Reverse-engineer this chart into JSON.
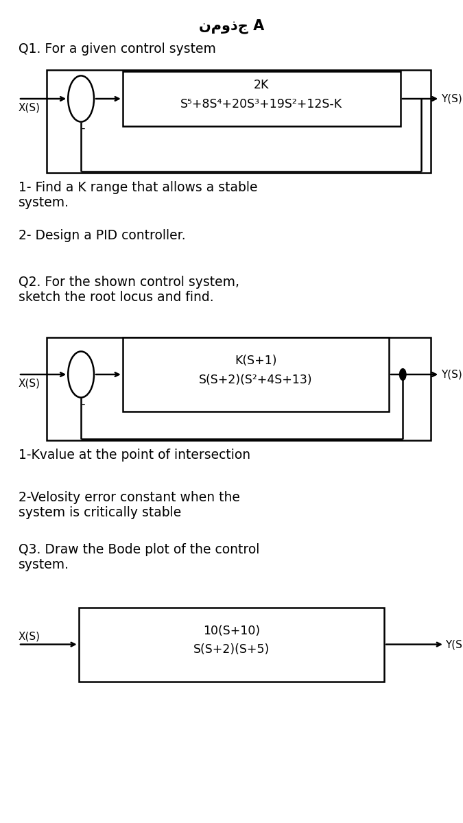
{
  "bg_color": "#ffffff",
  "title": "نموذج A",
  "title_fontsize": 15,
  "body_fontsize": 13.5,
  "q1_label": "Q1. For a given control system",
  "q1_tf_num": "2K",
  "q1_tf_den": "S⁵+8S⁴+20S³+19S²+12S-K",
  "q1_xs": "X(S)",
  "q1_ys": "Y(S)",
  "q1_item1": "1- Find a K range that allows a stable\nsystem.",
  "q1_item2": "2- Design a PID controller.",
  "q2_label": "Q2. For the shown control system,\nsketch the root locus and find.",
  "q2_tf_num": "K(S+1)",
  "q2_tf_den": "S(S+2)(S²+4S+13)",
  "q2_xs": "X(S)",
  "q2_ys": "Y(S)",
  "q2_item1": "1-Kvalue at the point of intersection",
  "q2_item2": "2-Velosity error constant when the\nsystem is critically stable",
  "q3_label": "Q3. Draw the Bode plot of the control\nsystem.",
  "q3_tf_num": "10(S+10)",
  "q3_tf_den": "S(S+2)(S+5)",
  "q3_xs": "X(S)",
  "q3_ys": "Y(S)",
  "text_color": "#000000",
  "box_color": "#000000",
  "line_color": "#000000",
  "lw": 1.8,
  "inner_fs": 12.5
}
